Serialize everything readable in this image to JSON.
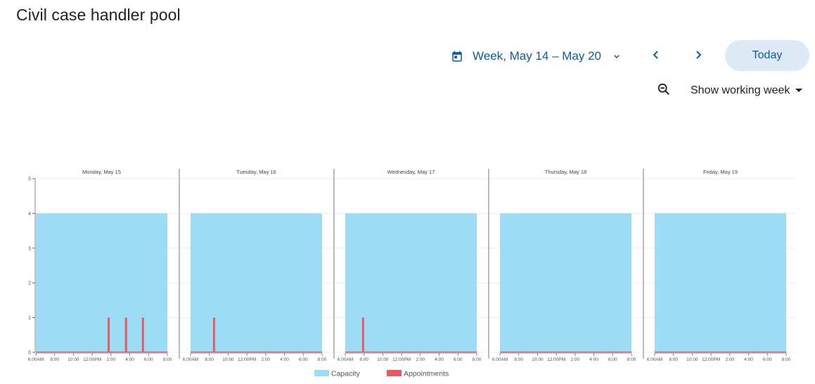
{
  "page": {
    "title": "Civil case handler pool"
  },
  "toolbar": {
    "week_label": "Week, May 14 – May 20",
    "today_label": "Today",
    "view_label": "Show working week",
    "icons": {
      "calendar": "calendar-icon",
      "dropdown": "chevron-down-icon",
      "prev": "chevron-left-icon",
      "next": "chevron-right-icon",
      "zoom": "zoom-out-icon",
      "view_caret": "caret-down-icon"
    },
    "accent_color": "#0d5aa7",
    "today_bg": "#dde9f5"
  },
  "chart_data": {
    "type": "area",
    "y_ticks": [
      "0",
      "1",
      "2",
      "3",
      "4",
      "5"
    ],
    "ylim": [
      0,
      5
    ],
    "x_ticks": [
      "6:00AM",
      "8:00",
      "10:00",
      "12:00PM",
      "2:00",
      "4:00",
      "6:00",
      "8:00"
    ],
    "x_range_hours": [
      6,
      20
    ],
    "grid": true,
    "legend_position": "bottom",
    "series": [
      {
        "name": "Capacity",
        "color": "#9ddcf6"
      },
      {
        "name": "Appointments",
        "color": "#e85a62"
      }
    ],
    "panels": [
      {
        "title": "Monday, May 15",
        "capacity": {
          "start": 6,
          "end": 20,
          "value": 4
        },
        "appointments": [
          {
            "x": 13.75,
            "value": 1
          },
          {
            "x": 15.6,
            "value": 1
          },
          {
            "x": 17.4,
            "value": 1
          }
        ]
      },
      {
        "title": "Tuesday, May 16",
        "capacity": {
          "start": 6,
          "end": 20,
          "value": 4
        },
        "appointments": [
          {
            "x": 8.5,
            "value": 1
          }
        ]
      },
      {
        "title": "Wednesday, May 17",
        "capacity": {
          "start": 6,
          "end": 20,
          "value": 4
        },
        "appointments": [
          {
            "x": 7.9,
            "value": 1
          }
        ]
      },
      {
        "title": "Thursday, May 18",
        "capacity": {
          "start": 6,
          "end": 20,
          "value": 4
        },
        "appointments": []
      },
      {
        "title": "Friday, May 19",
        "capacity": {
          "start": 6,
          "end": 20,
          "value": 4
        },
        "appointments": []
      }
    ]
  }
}
